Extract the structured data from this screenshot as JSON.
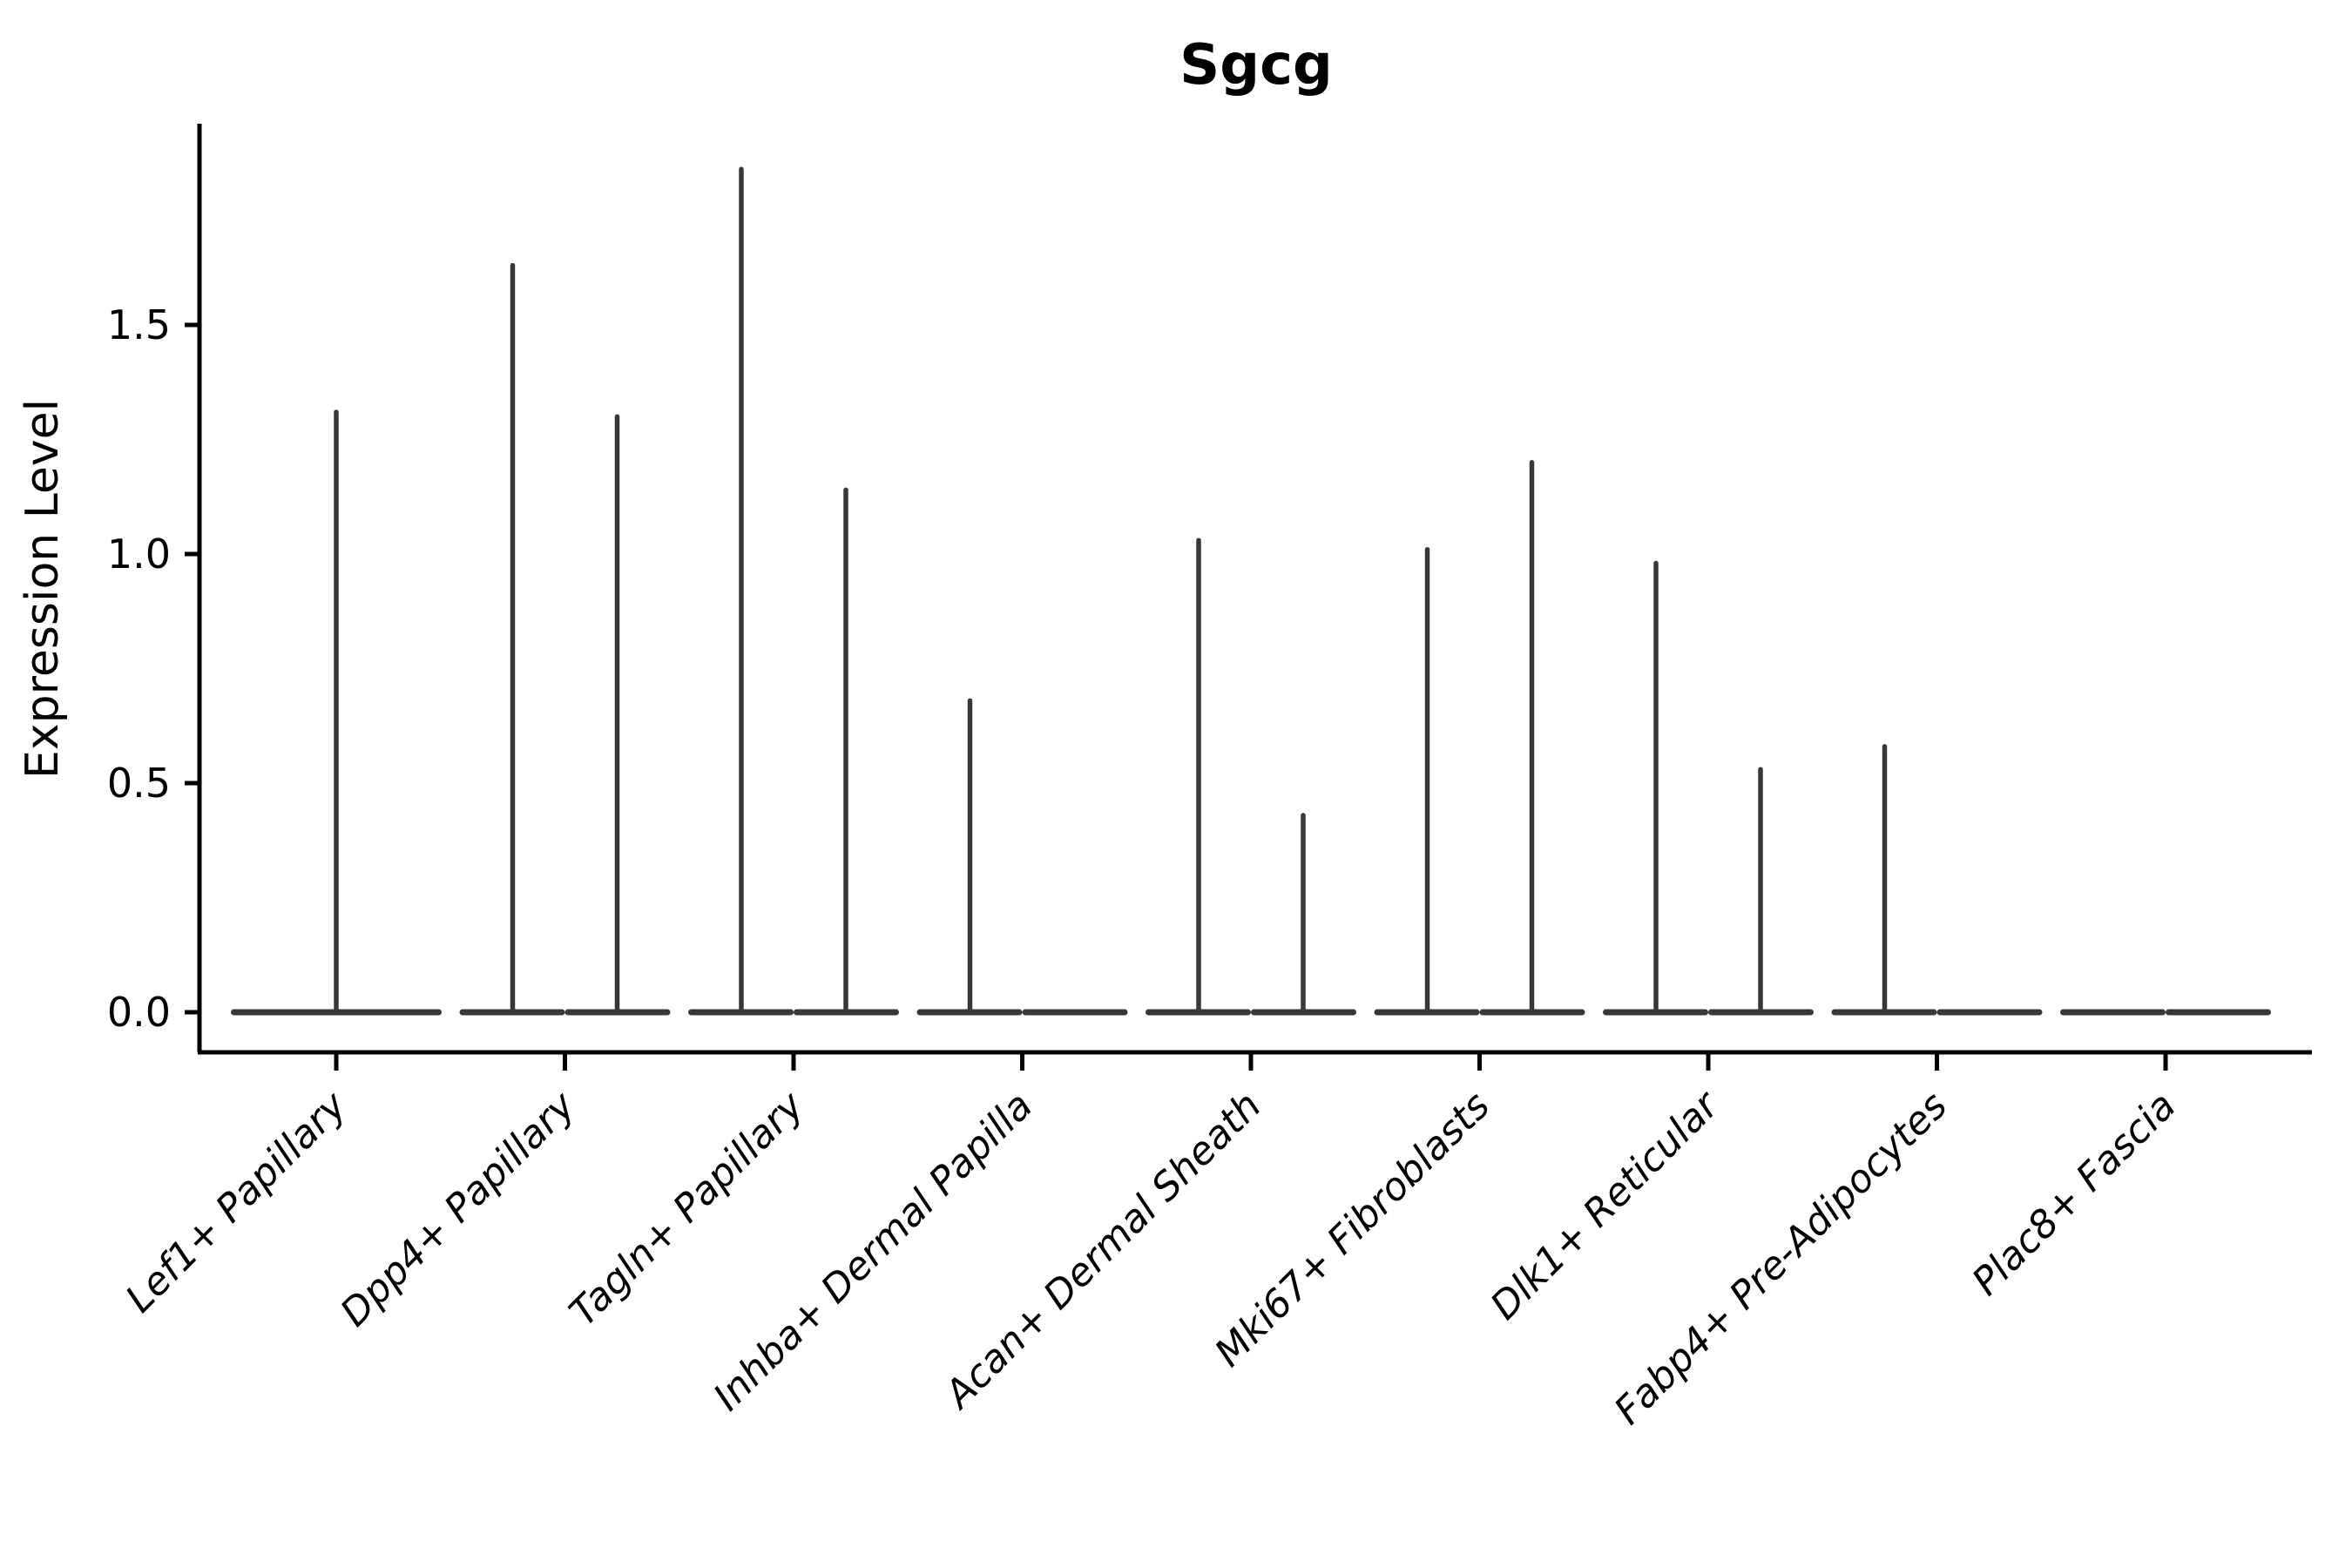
{
  "title": "Sgcg",
  "colors": {
    "background": "#ffffff",
    "axis": "#000000",
    "violin": "#383838",
    "text": "#000000"
  },
  "chart_data": {
    "type": "violin",
    "title": "Sgcg",
    "xlabel": "",
    "ylabel": "Expression Level",
    "ylim": [
      -0.09,
      1.93
    ],
    "yticks": [
      0.0,
      0.5,
      1.0,
      1.5
    ],
    "ytick_labels": [
      "0.0",
      "0.5",
      "1.0",
      "1.5"
    ],
    "grid": false,
    "legend": "none",
    "note": "Seurat-style violin plot; violins are mostly flat at 0 with thin spikes to each group's max expression",
    "categories": [
      {
        "label": "Lef1+ Papillary",
        "violins": [
          {
            "position": "center",
            "max_expression": 1.31
          }
        ]
      },
      {
        "label": "Dpp4+ Papillary",
        "violins": [
          {
            "position": "left",
            "max_expression": 1.63
          },
          {
            "position": "right",
            "max_expression": 1.3
          }
        ]
      },
      {
        "label": "Tagln+ Papillary",
        "violins": [
          {
            "position": "left",
            "max_expression": 1.84
          },
          {
            "position": "right",
            "max_expression": 1.14
          }
        ]
      },
      {
        "label": "Inhba+ Dermal Papilla",
        "violins": [
          {
            "position": "left",
            "max_expression": 0.68
          },
          {
            "position": "right",
            "max_expression": 0
          }
        ]
      },
      {
        "label": "Acan+ Dermal Sheath",
        "violins": [
          {
            "position": "left",
            "max_expression": 1.03
          },
          {
            "position": "right",
            "max_expression": 0.43
          }
        ]
      },
      {
        "label": "Mki67+ Fibroblasts",
        "violins": [
          {
            "position": "left",
            "max_expression": 1.01
          },
          {
            "position": "right",
            "max_expression": 1.2
          }
        ]
      },
      {
        "label": "Dlk1+ Reticular",
        "violins": [
          {
            "position": "left",
            "max_expression": 0.98
          },
          {
            "position": "right",
            "max_expression": 0.53
          }
        ]
      },
      {
        "label": "Fabp4+ Pre-Adipocytes",
        "violins": [
          {
            "position": "left",
            "max_expression": 0.58
          },
          {
            "position": "right",
            "max_expression": 0
          }
        ]
      },
      {
        "label": "Plac8+ Fascia",
        "violins": [
          {
            "position": "left",
            "max_expression": 0
          },
          {
            "position": "right",
            "max_expression": 0
          }
        ]
      }
    ]
  }
}
